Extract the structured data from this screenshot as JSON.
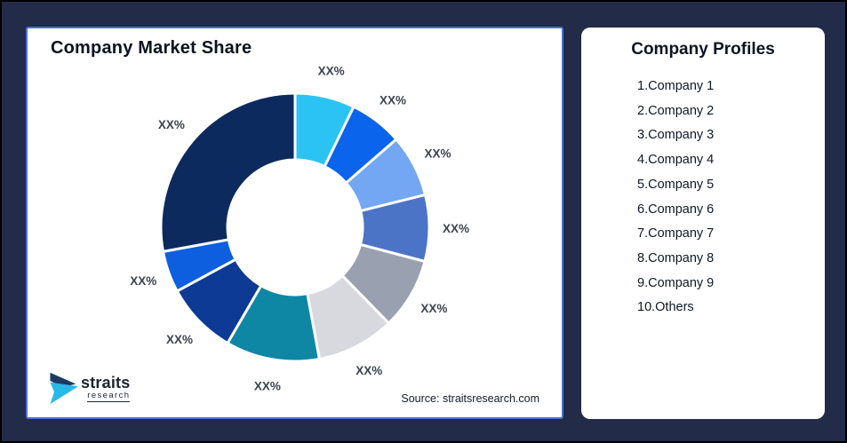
{
  "background": {
    "canvas_color": "#222b47",
    "card_border_color": "#4a72d8"
  },
  "chart_card": {
    "title": "Company Market Share",
    "source": "Source: straitsresearch.com",
    "logo": {
      "name": "straits",
      "sub": "research",
      "mark_navy": "#1d3a63",
      "mark_cyan": "#29b9e8"
    }
  },
  "chart_data": {
    "type": "pie",
    "style": "donut",
    "title": "Company Market Share",
    "start_angle_deg": 0,
    "direction": "clockwise",
    "inner_radius_ratio": 0.5,
    "categories": [
      "Company 1",
      "Company 2",
      "Company 3",
      "Company 4",
      "Company 5",
      "Company 6",
      "Company 7",
      "Company 8",
      "Company 9",
      "Others"
    ],
    "values": [
      7.2,
      6.4,
      7.5,
      8.0,
      8.6,
      9.4,
      11.3,
      8.7,
      5.0,
      27.9
    ],
    "value_labels": [
      "XX%",
      "XX%",
      "XX%",
      "XX%",
      "XX%",
      "XX%",
      "XX%",
      "XX%",
      "XX%",
      "XX%"
    ],
    "colors": [
      "#2BC3F3",
      "#0A64EC",
      "#73A6F3",
      "#4C74C6",
      "#99A1B0",
      "#D7D9DF",
      "#0E87A5",
      "#0D3A94",
      "#0E5FE0",
      "#0C2A5E"
    ],
    "label_color": "#3d4350",
    "segment_gap_color": "#ffffff",
    "legend_position": "none"
  },
  "profiles_card": {
    "title": "Company Profiles",
    "items": [
      "1.Company 1",
      "2.Company 2",
      "3.Company 3",
      "4.Company 4",
      "5.Company 5",
      "6.Company 6",
      "7.Company 7",
      "8.Company 8",
      "9.Company 9",
      "10.Others"
    ]
  }
}
